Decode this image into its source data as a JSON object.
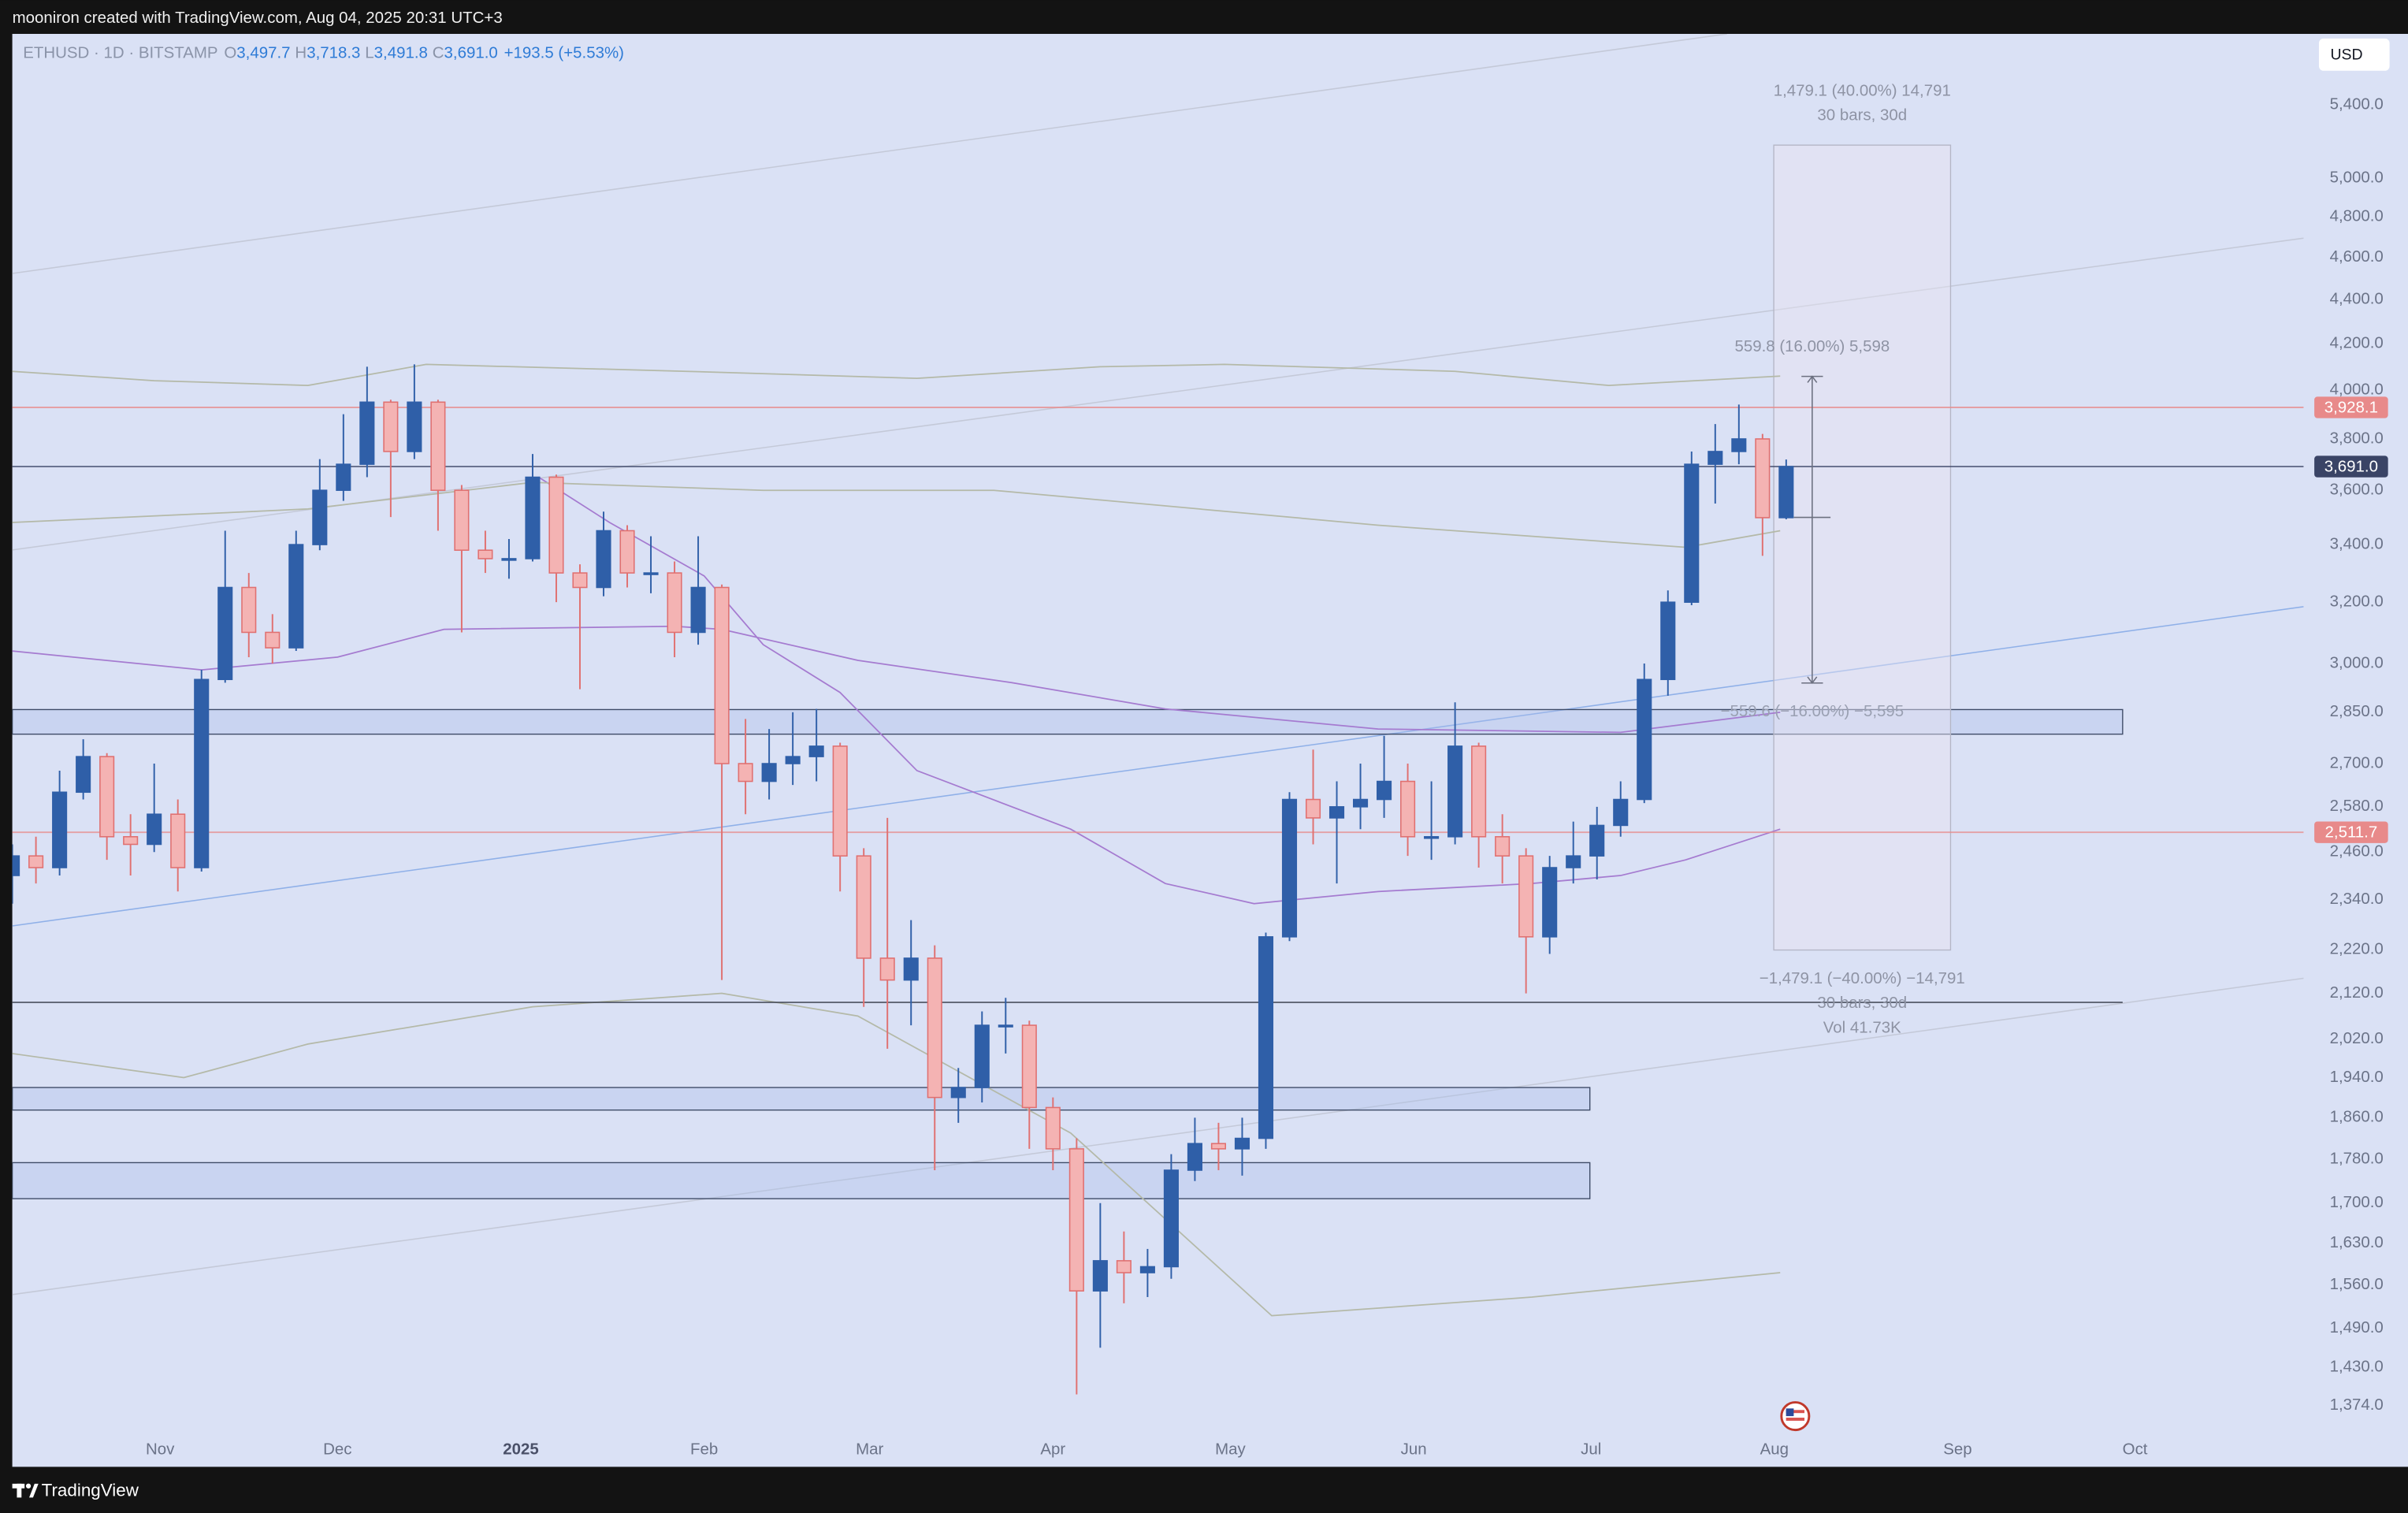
{
  "header": {
    "watermark": "mooniron created with TradingView.com, Aug 04, 2025 20:31 UTC+3",
    "symbol": "ETHUSD · 1D · BITSTAMP",
    "ohlc": [
      {
        "key": "O",
        "value": "3,497.7"
      },
      {
        "key": "H",
        "value": "3,718.3"
      },
      {
        "key": "L",
        "value": "3,491.8"
      },
      {
        "key": "C",
        "value": "3,691.0"
      }
    ],
    "change": "+193.5 (+5.53%)",
    "currency": "USD"
  },
  "footer": {
    "brand": "TradingView"
  },
  "chart_data": {
    "type": "candlestick",
    "x": [
      0,
      4,
      8,
      12,
      16,
      20,
      24,
      28,
      32,
      36,
      40,
      44,
      48,
      52,
      56,
      60,
      64,
      68,
      72,
      76,
      80,
      84,
      88,
      92,
      96,
      100,
      104,
      108,
      112,
      116,
      120,
      124,
      128,
      132,
      136,
      140,
      144,
      148,
      152,
      156,
      160,
      164,
      168,
      172,
      176,
      180,
      184,
      188,
      192,
      196,
      200,
      204,
      208,
      212,
      216,
      220,
      224,
      228,
      232,
      236,
      240,
      244,
      248,
      252,
      256,
      260,
      264,
      268,
      272,
      276,
      280,
      284,
      288,
      292,
      296,
      300
    ],
    "open": [
      2400,
      2450,
      2420,
      2620,
      2720,
      2500,
      2480,
      2560,
      2420,
      2950,
      3250,
      3100,
      3050,
      3400,
      3600,
      3700,
      3950,
      3750,
      3950,
      3600,
      3380,
      3350,
      3350,
      3650,
      3300,
      3250,
      3450,
      3300,
      3300,
      3100,
      3250,
      2700,
      2650,
      2700,
      2720,
      2750,
      2450,
      2200,
      2150,
      2200,
      1900,
      1920,
      2050,
      2050,
      1880,
      1800,
      1550,
      1600,
      1580,
      1590,
      1760,
      1810,
      1800,
      1820,
      2250,
      2600,
      2550,
      2580,
      2600,
      2650,
      2500,
      2500,
      2750,
      2500,
      2450,
      2250,
      2420,
      2450,
      2530,
      2600,
      2950,
      3200,
      3700,
      3750,
      3800,
      3497.7
    ],
    "high": [
      2480,
      2500,
      2680,
      2770,
      2730,
      2560,
      2700,
      2600,
      2980,
      3450,
      3300,
      3160,
      3450,
      3720,
      3900,
      4100,
      3960,
      4110,
      3960,
      3620,
      3450,
      3420,
      3740,
      3660,
      3330,
      3520,
      3470,
      3430,
      3340,
      3430,
      3260,
      2830,
      2800,
      2850,
      2860,
      2760,
      2470,
      2550,
      2290,
      2230,
      1960,
      2080,
      2110,
      2060,
      1900,
      1820,
      1700,
      1650,
      1620,
      1790,
      1860,
      1850,
      1860,
      2260,
      2620,
      2740,
      2650,
      2700,
      2780,
      2700,
      2650,
      2880,
      2760,
      2560,
      2470,
      2450,
      2540,
      2580,
      2650,
      3000,
      3240,
      3750,
      3860,
      3940,
      3820,
      3718.3
    ],
    "low": [
      2330,
      2380,
      2400,
      2600,
      2440,
      2400,
      2460,
      2360,
      2410,
      2940,
      3020,
      3000,
      3040,
      3380,
      3560,
      3650,
      3500,
      3720,
      3450,
      3100,
      3300,
      3280,
      3340,
      3200,
      2920,
      3220,
      3250,
      3230,
      3020,
      3060,
      2150,
      2560,
      2600,
      2640,
      2650,
      2360,
      2090,
      2000,
      2050,
      1760,
      1850,
      1890,
      1990,
      1800,
      1760,
      1390,
      1460,
      1530,
      1540,
      1570,
      1740,
      1760,
      1750,
      1800,
      2240,
      2480,
      2380,
      2520,
      2550,
      2450,
      2440,
      2480,
      2420,
      2380,
      2120,
      2210,
      2380,
      2390,
      2500,
      2590,
      2900,
      3190,
      3550,
      3700,
      3360,
      3491.8
    ],
    "close": [
      2450,
      2420,
      2620,
      2720,
      2500,
      2480,
      2560,
      2420,
      2950,
      3250,
      3100,
      3050,
      3400,
      3600,
      3700,
      3950,
      3750,
      3950,
      3600,
      3380,
      3350,
      3350,
      3650,
      3300,
      3250,
      3450,
      3300,
      3300,
      3100,
      3250,
      2700,
      2650,
      2700,
      2720,
      2750,
      2450,
      2200,
      2150,
      2200,
      1900,
      1920,
      2050,
      2050,
      1880,
      1800,
      1550,
      1600,
      1580,
      1590,
      1760,
      1810,
      1800,
      1820,
      2250,
      2600,
      2550,
      2580,
      2600,
      2650,
      2500,
      2500,
      2750,
      2500,
      2450,
      2250,
      2420,
      2450,
      2530,
      2600,
      2950,
      3200,
      3700,
      3750,
      3800,
      3497.7,
      3691.0
    ],
    "up_color": "#2f5fa8",
    "down_color": "#e07070",
    "xlim": [
      0,
      387.5
    ],
    "xticks": [
      {
        "value": 25,
        "label": "Nov"
      },
      {
        "value": 55,
        "label": "Dec"
      },
      {
        "value": 86,
        "label": "2025"
      },
      {
        "value": 117,
        "label": "Feb"
      },
      {
        "value": 145,
        "label": "Mar"
      },
      {
        "value": 176,
        "label": "Apr"
      },
      {
        "value": 206,
        "label": "May"
      },
      {
        "value": 237,
        "label": "Jun"
      },
      {
        "value": 267,
        "label": "Jul"
      },
      {
        "value": 298,
        "label": "Aug"
      },
      {
        "value": 329,
        "label": "Sep"
      },
      {
        "value": 359,
        "label": "Oct"
      }
    ],
    "ylim": [
      1288,
      5820
    ],
    "log_scale": true,
    "yticks": [
      {
        "value": 5400,
        "label": "5,400.0"
      },
      {
        "value": 5000,
        "label": "5,000.0"
      },
      {
        "value": 4800,
        "label": "4,800.0"
      },
      {
        "value": 4600,
        "label": "4,600.0"
      },
      {
        "value": 4400,
        "label": "4,400.0"
      },
      {
        "value": 4200,
        "label": "4,200.0"
      },
      {
        "value": 4000,
        "label": "4,000.0"
      },
      {
        "value": 3800,
        "label": "3,800.0"
      },
      {
        "value": 3600,
        "label": "3,600.0"
      },
      {
        "value": 3400,
        "label": "3,400.0"
      },
      {
        "value": 3200,
        "label": "3,200.0"
      },
      {
        "value": 3000,
        "label": "3,000.0"
      },
      {
        "value": 2850,
        "label": "2,850.0"
      },
      {
        "value": 2700,
        "label": "2,700.0"
      },
      {
        "value": 2580,
        "label": "2,580.0"
      },
      {
        "value": 2460,
        "label": "2,460.0"
      },
      {
        "value": 2340,
        "label": "2,340.0"
      },
      {
        "value": 2220,
        "label": "2,220.0"
      },
      {
        "value": 2120,
        "label": "2,120.0"
      },
      {
        "value": 2020,
        "label": "2,020.0"
      },
      {
        "value": 1940,
        "label": "1,940.0"
      },
      {
        "value": 1860,
        "label": "1,860.0"
      },
      {
        "value": 1780,
        "label": "1,780.0"
      },
      {
        "value": 1700,
        "label": "1,700.0"
      },
      {
        "value": 1630,
        "label": "1,630.0"
      },
      {
        "value": 1560,
        "label": "1,560.0"
      },
      {
        "value": 1490,
        "label": "1,490.0"
      },
      {
        "value": 1430,
        "label": "1,430.0"
      },
      {
        "value": 1374,
        "label": "1,374.0"
      }
    ],
    "overlays": [
      {
        "color": "#a57bd0",
        "x": [
          0,
          32,
          55,
          73,
          112,
          120,
          143,
          169,
          195,
          231,
          272,
          299
        ],
        "values": [
          3040,
          2980,
          3020,
          3110,
          3120,
          3110,
          3010,
          2940,
          2860,
          2800,
          2790,
          2850
        ]
      },
      {
        "color": "#a57bd0",
        "x": [
          89,
          101,
          117,
          127,
          140,
          153,
          179,
          195,
          210,
          231,
          257,
          272,
          283,
          299
        ],
        "values": [
          3650,
          3480,
          3290,
          3060,
          2910,
          2680,
          2520,
          2380,
          2330,
          2360,
          2380,
          2400,
          2440,
          2520
        ]
      },
      {
        "color": "#b4b9a8",
        "x": [
          0,
          24,
          50,
          70,
          114,
          153,
          184,
          205,
          244,
          270,
          299
        ],
        "values": [
          4080,
          4040,
          4020,
          4110,
          4080,
          4050,
          4100,
          4110,
          4080,
          4020,
          4060
        ]
      },
      {
        "color": "#b4b9a8",
        "x": [
          0,
          50,
          88,
          127,
          166,
          231,
          283,
          299
        ],
        "values": [
          3480,
          3530,
          3630,
          3600,
          3600,
          3470,
          3390,
          3450
        ]
      },
      {
        "color": "#b4b9a8",
        "x": [
          0,
          29,
          50,
          88,
          120,
          143,
          179,
          213,
          257,
          299
        ],
        "values": [
          1990,
          1940,
          2010,
          2090,
          2120,
          2070,
          1830,
          1510,
          1540,
          1580
        ]
      }
    ],
    "trend_lines": [
      {
        "color": "#c4c9d8",
        "x": [
          0,
          290
        ],
        "values": [
          4523,
          5820
        ]
      },
      {
        "color": "#c4c9d8",
        "x": [
          0,
          387.5
        ],
        "values": [
          3381,
          4694
        ]
      },
      {
        "color": "#8fb0e8",
        "x": [
          0,
          387.5
        ],
        "values": [
          2276,
          3185
        ]
      },
      {
        "color": "#c4c9d8",
        "x": [
          0,
          387.5
        ],
        "values": [
          1544,
          2154
        ]
      }
    ],
    "zones": [
      {
        "x": [
          0,
          356.9
        ],
        "y": [
          2785,
          2858
        ]
      },
      {
        "x": [
          0,
          266.8
        ],
        "y": [
          1875,
          1920
        ]
      },
      {
        "x": [
          0,
          266.8
        ],
        "y": [
          1708,
          1774
        ]
      }
    ],
    "levels": [
      {
        "value": 3928.1,
        "label": "3,928.1",
        "color": "#e88a8a"
      },
      {
        "value": 3691.0,
        "label": "3,691.0",
        "color": "#3a4466"
      },
      {
        "value": 2511.7,
        "label": "2,511.7",
        "color": "#e88a8a"
      },
      {
        "value": 2100,
        "color": "#3c4250",
        "x": [
          0,
          356.9
        ]
      }
    ],
    "measure": {
      "box": {
        "x": [
          297.9,
          327.8
        ],
        "y": [
          2219,
          5177
        ]
      },
      "top_text": [
        "1,479.1 (40.00%) 14,791",
        "30 bars, 30d"
      ],
      "bottom_text": [
        "−1,479.1 (−40.00%) −14,791",
        "30 bars, 30d",
        "Vol 41.73K"
      ],
      "arrow": {
        "x": 304.4,
        "y": [
          2939,
          4058.5
        ],
        "mid": 3498.7,
        "mid_x": [
          301.3,
          307.5
        ],
        "top_text": "559.8 (16.00%) 5,598",
        "bottom_text": "−559.6 (−16.00%) −5,595"
      }
    }
  }
}
